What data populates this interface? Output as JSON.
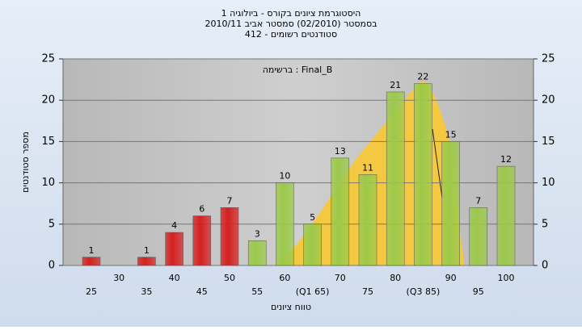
{
  "chart_data": {
    "type": "bar",
    "title": "היסטוגרמת ציונים בקורס - ביולוגיה 1",
    "subtitle": "בסמסטר  (02/2010)  סמסטר אביב 2010/11",
    "subtitle2": "סטודנטים רשומים - 412",
    "annotation": "ברשימה : Final_B",
    "ylabel": "מספר סטודנטים",
    "xlabel": "טווח ציונים",
    "categories": [
      "25",
      "30",
      "35",
      "40",
      "45",
      "50",
      "55",
      "60",
      "(Q1 65)",
      "70",
      "75",
      "80",
      "(Q3 85)",
      "90",
      "95",
      "100"
    ],
    "values": [
      1,
      null,
      1,
      4,
      6,
      7,
      3,
      10,
      5,
      13,
      11,
      21,
      22,
      15,
      7,
      12
    ],
    "colors": [
      "#d42020",
      "#d42020",
      "#d42020",
      "#d42020",
      "#d42020",
      "#d42020",
      "#9cc94a",
      "#9cc94a",
      "#9cc94a",
      "#9cc94a",
      "#9cc94a",
      "#9cc94a",
      "#9cc94a",
      "#9cc94a",
      "#9cc94a",
      "#9cc94a"
    ],
    "ylim": [
      0,
      25
    ],
    "yticks": [
      0,
      5,
      10,
      15,
      20,
      25
    ],
    "y2lim": [
      0,
      25
    ],
    "y2ticks": [
      0,
      5,
      10,
      15,
      20,
      25
    ],
    "grid": true
  }
}
